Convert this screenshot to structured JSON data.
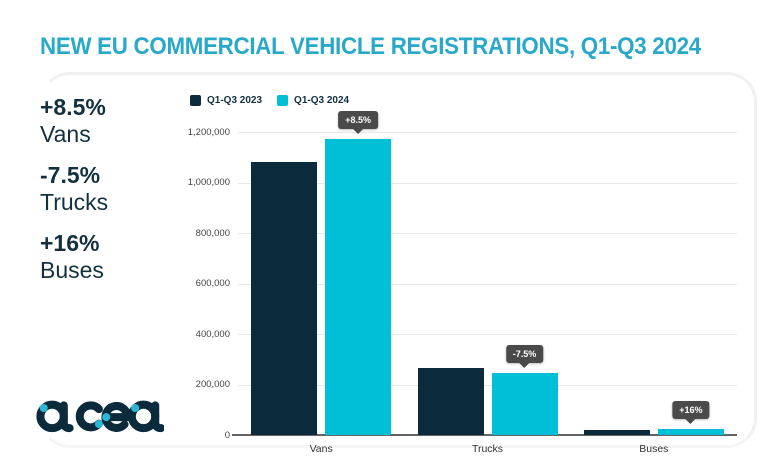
{
  "page": {
    "title": "NEW EU COMMERCIAL VEHICLE REGISTRATIONS, Q1-Q3 2024"
  },
  "stats": [
    {
      "value": "+8.5%",
      "label": "Vans"
    },
    {
      "value": "-7.5%",
      "label": "Trucks"
    },
    {
      "value": "+16%",
      "label": "Buses"
    }
  ],
  "logo": {
    "text": "acea"
  },
  "colors": {
    "accent_teal": "#29a9c9",
    "navy": "#0b2b3c",
    "cyan": "#00bfd6",
    "badge_bg": "#4a4a4a",
    "gridline": "#e8e8e8"
  },
  "chart_data": {
    "type": "bar",
    "title": "NEW EU COMMERCIAL VEHICLE REGISTRATIONS, Q1-Q3 2024",
    "categories": [
      "Vans",
      "Trucks",
      "Buses"
    ],
    "series": [
      {
        "name": "Q1-Q3 2023",
        "color": "#0b2b3c",
        "values": [
          1080000,
          265000,
          20000
        ]
      },
      {
        "name": "Q1-Q3 2024",
        "color": "#00bfd6",
        "values": [
          1172000,
          245000,
          23200
        ]
      }
    ],
    "annotations": [
      {
        "category": "Vans",
        "series": "Q1-Q3 2024",
        "label": "+8.5%"
      },
      {
        "category": "Trucks",
        "series": "Q1-Q3 2024",
        "label": "-7.5%"
      },
      {
        "category": "Buses",
        "series": "Q1-Q3 2024",
        "label": "+16%"
      }
    ],
    "xlabel": "",
    "ylabel": "",
    "ylim": [
      0,
      1200000
    ],
    "yticks": [
      0,
      200000,
      400000,
      600000,
      800000,
      1000000,
      1200000
    ],
    "grid": true,
    "legend_position": "top-left"
  }
}
